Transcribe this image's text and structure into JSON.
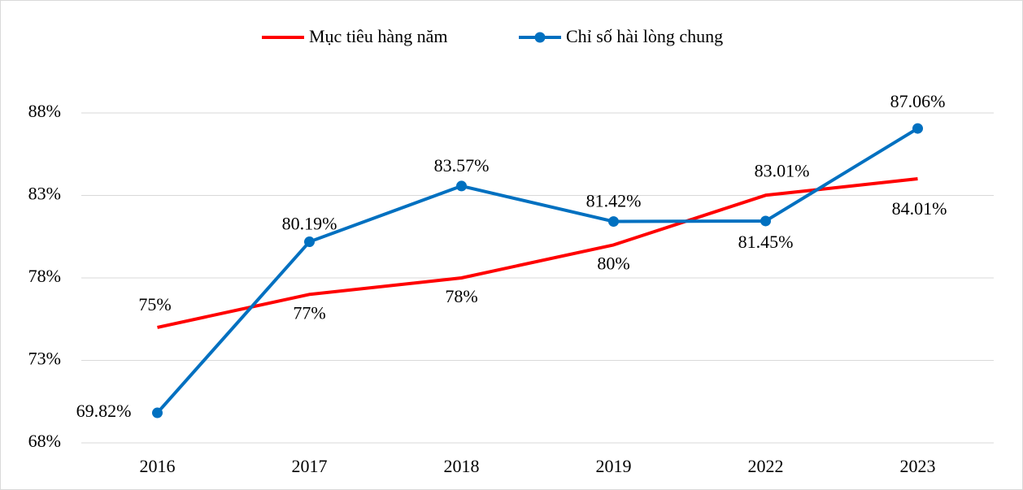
{
  "chart_data": {
    "type": "line",
    "categories": [
      "2016",
      "2017",
      "2018",
      "2019",
      "2022",
      "2023"
    ],
    "series": [
      {
        "name": "Mục tiêu hàng năm",
        "color": "#ff0000",
        "markers": false,
        "values": [
          75,
          77,
          78,
          80,
          83.01,
          84.01
        ],
        "value_labels": [
          "75%",
          "77%",
          "78%",
          "80%",
          "83.01%",
          "84.01%"
        ]
      },
      {
        "name": "Chỉ số hài lòng chung",
        "color": "#0070c0",
        "markers": true,
        "values": [
          69.82,
          80.19,
          83.57,
          81.42,
          81.45,
          87.06
        ],
        "value_labels": [
          "69.82%",
          "80.19%",
          "83.57%",
          "81.42%",
          "81.45%",
          "87.06%"
        ]
      }
    ],
    "ylim": [
      68,
      88
    ],
    "yticks": [
      {
        "value": 68,
        "label": "68%"
      },
      {
        "value": 73,
        "label": "73%"
      },
      {
        "value": 78,
        "label": "78%"
      },
      {
        "value": 83,
        "label": "83%"
      },
      {
        "value": 88,
        "label": "88%"
      }
    ],
    "grid": true,
    "legend": "top"
  }
}
